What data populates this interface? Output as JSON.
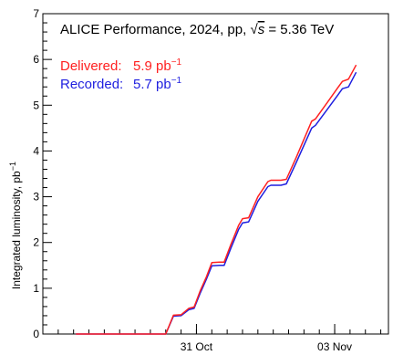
{
  "chart_data": {
    "type": "line",
    "title": {
      "prefix": "ALICE Performance, 2024, pp, ",
      "sqrt_symbol": "√",
      "s_variable": "s",
      "energy": " = 5.36 TeV"
    },
    "ylabel": "Integrated luminosity, pb",
    "ylabel_exponent": "−1",
    "xlabel": "",
    "ylim": [
      0,
      7
    ],
    "y_ticks": [
      "0",
      "1",
      "2",
      "3",
      "4",
      "5",
      "6",
      "7"
    ],
    "x_domain": [
      0,
      45
    ],
    "x_ticks": [
      {
        "x": 20.0,
        "label": "31 Oct"
      },
      {
        "x": 38.0,
        "label": "03 Nov"
      }
    ],
    "grid": false,
    "legend_position": "top-left",
    "series": [
      {
        "name": "Delivered",
        "legend_label": "Delivered:",
        "legend_value": "5.9 pb",
        "legend_exponent": "−1",
        "color": "#ff2020",
        "points": [
          [
            4.3,
            0
          ],
          [
            8.0,
            0
          ],
          [
            14.8,
            0
          ],
          [
            16.0,
            0.0
          ],
          [
            17.0,
            0.41
          ],
          [
            18.0,
            0.42
          ],
          [
            19.0,
            0.56
          ],
          [
            19.7,
            0.59
          ],
          [
            20.5,
            0.95
          ],
          [
            21.3,
            1.25
          ],
          [
            22.0,
            1.56
          ],
          [
            23.0,
            1.57
          ],
          [
            23.6,
            1.57
          ],
          [
            24.5,
            1.96
          ],
          [
            25.5,
            2.38
          ],
          [
            26.0,
            2.52
          ],
          [
            26.8,
            2.54
          ],
          [
            28.0,
            3.0
          ],
          [
            29.3,
            3.33
          ],
          [
            29.7,
            3.36
          ],
          [
            31.0,
            3.36
          ],
          [
            31.7,
            3.38
          ],
          [
            33.0,
            3.86
          ],
          [
            35.0,
            4.65
          ],
          [
            35.5,
            4.7
          ],
          [
            37.0,
            5.05
          ],
          [
            38.4,
            5.38
          ],
          [
            39.0,
            5.52
          ],
          [
            39.8,
            5.57
          ],
          [
            40.8,
            5.88
          ]
        ]
      },
      {
        "name": "Recorded",
        "legend_label": "Recorded:",
        "legend_value": "5.7 pb",
        "legend_exponent": "−1",
        "color": "#1f1fdf",
        "points": [
          [
            4.3,
            0
          ],
          [
            8.0,
            0
          ],
          [
            14.8,
            0
          ],
          [
            16.0,
            0.0
          ],
          [
            17.0,
            0.39
          ],
          [
            18.0,
            0.4
          ],
          [
            19.0,
            0.53
          ],
          [
            19.7,
            0.56
          ],
          [
            20.5,
            0.9
          ],
          [
            21.3,
            1.2
          ],
          [
            22.0,
            1.49
          ],
          [
            23.0,
            1.5
          ],
          [
            23.6,
            1.5
          ],
          [
            24.5,
            1.88
          ],
          [
            25.5,
            2.29
          ],
          [
            26.0,
            2.43
          ],
          [
            26.8,
            2.45
          ],
          [
            28.0,
            2.9
          ],
          [
            29.3,
            3.22
          ],
          [
            29.7,
            3.25
          ],
          [
            31.0,
            3.25
          ],
          [
            31.7,
            3.28
          ],
          [
            33.0,
            3.75
          ],
          [
            35.0,
            4.5
          ],
          [
            35.5,
            4.56
          ],
          [
            37.0,
            4.9
          ],
          [
            38.4,
            5.22
          ],
          [
            39.0,
            5.36
          ],
          [
            39.8,
            5.4
          ],
          [
            40.8,
            5.72
          ]
        ]
      }
    ]
  }
}
